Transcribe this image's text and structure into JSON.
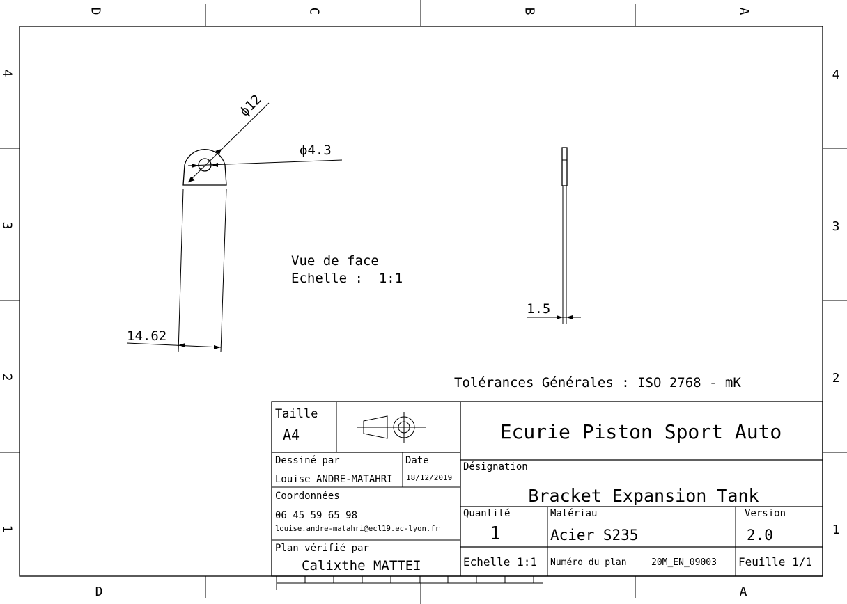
{
  "zones": {
    "top": [
      "D",
      "C",
      "B",
      "A"
    ],
    "bottom": [
      "D",
      "A"
    ],
    "left": [
      "4",
      "3",
      "2",
      "1"
    ],
    "right": [
      "4",
      "3",
      "2",
      "1"
    ]
  },
  "dimensions": {
    "phi_outer": "ϕ12",
    "phi_hole": "ϕ4.3",
    "width": "14.62",
    "thickness": "1.5"
  },
  "view_note": {
    "line1": "Vue de face",
    "line2": "Echelle :  1:1"
  },
  "tolerances": "Tolérances Générales : ISO 2768 - mK",
  "title_block": {
    "taille_label": "Taille",
    "taille_value": "A4",
    "company": "Ecurie Piston Sport Auto",
    "dessine_label": "Dessiné par",
    "dessine_value": "Louise ANDRE-MATAHRI",
    "date_label": "Date",
    "date_value": "18/12/2019",
    "designation_label": "Désignation",
    "designation_value": "Bracket Expansion Tank",
    "coordonnees_label": "Coordonnées",
    "phone": "06 45 59 65 98",
    "email": "louise.andre-matahri@ecl19.ec-lyon.fr",
    "quantite_label": "Quantité",
    "quantite_value": "1",
    "materiau_label": "Matériau",
    "materiau_value": "Acier S235",
    "version_label": "Version",
    "version_value": "2.0",
    "verifie_label": "Plan vérifié par",
    "verifie_value": "Calixthe MATTEI",
    "echelle": "Echelle 1:1",
    "numero_label": "Numéro du plan",
    "numero_value": "20M_EN_09003",
    "feuille": "Feuille 1/1"
  }
}
